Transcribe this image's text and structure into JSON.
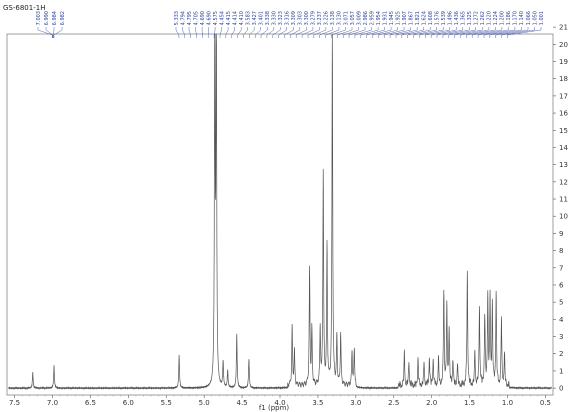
{
  "chart_data": {
    "type": "line",
    "title": "GS-6801-1H",
    "xlabel": "f1 (ppm)",
    "ylabel": "",
    "xlim": [
      7.6,
      0.4
    ],
    "ylim": [
      -0.4,
      20.6
    ],
    "x_reversed": true,
    "x_ticks": [
      "7.5",
      "7.0",
      "6.5",
      "6.0",
      "5.5",
      "5.0",
      "4.5",
      "4.0",
      "3.5",
      "3.0",
      "2.5",
      "2.0",
      "1.5",
      "1.0",
      "0.5"
    ],
    "y_ticks": [
      "0",
      "1",
      "2",
      "3",
      "4",
      "5",
      "6",
      "7",
      "8",
      "9",
      "10",
      "11",
      "12",
      "13",
      "14",
      "15",
      "16",
      "17",
      "18",
      "19",
      "20",
      "21"
    ],
    "line_color": "#555555",
    "label_color": "#2a3f9a",
    "peaks": [
      {
        "x": 7.26,
        "y": 0.9
      },
      {
        "x": 6.98,
        "y": 1.3
      },
      {
        "x": 5.33,
        "y": 1.9
      },
      {
        "x": 4.86,
        "y": 20.6
      },
      {
        "x": 4.84,
        "y": 20.6
      },
      {
        "x": 4.75,
        "y": 1.5
      },
      {
        "x": 4.69,
        "y": 1.0
      },
      {
        "x": 4.57,
        "y": 3.1
      },
      {
        "x": 4.41,
        "y": 1.7
      },
      {
        "x": 3.84,
        "y": 3.4
      },
      {
        "x": 3.81,
        "y": 2.0
      },
      {
        "x": 3.61,
        "y": 6.7
      },
      {
        "x": 3.58,
        "y": 3.2
      },
      {
        "x": 3.47,
        "y": 3.3
      },
      {
        "x": 3.43,
        "y": 12.4
      },
      {
        "x": 3.38,
        "y": 8.0
      },
      {
        "x": 3.31,
        "y": 20.6
      },
      {
        "x": 3.25,
        "y": 2.8
      },
      {
        "x": 3.2,
        "y": 3.0
      },
      {
        "x": 3.05,
        "y": 2.0
      },
      {
        "x": 3.02,
        "y": 2.1
      },
      {
        "x": 2.36,
        "y": 1.9
      },
      {
        "x": 2.3,
        "y": 1.4
      },
      {
        "x": 2.18,
        "y": 1.6
      },
      {
        "x": 2.1,
        "y": 1.4
      },
      {
        "x": 2.03,
        "y": 1.7
      },
      {
        "x": 1.98,
        "y": 1.6
      },
      {
        "x": 1.91,
        "y": 1.5
      },
      {
        "x": 1.84,
        "y": 5.4
      },
      {
        "x": 1.8,
        "y": 4.5
      },
      {
        "x": 1.77,
        "y": 3.3
      },
      {
        "x": 1.72,
        "y": 1.5
      },
      {
        "x": 1.66,
        "y": 1.2
      },
      {
        "x": 1.53,
        "y": 6.6
      },
      {
        "x": 1.43,
        "y": 2.0
      },
      {
        "x": 1.37,
        "y": 4.6
      },
      {
        "x": 1.3,
        "y": 4.1
      },
      {
        "x": 1.26,
        "y": 5.3
      },
      {
        "x": 1.23,
        "y": 5.1
      },
      {
        "x": 1.2,
        "y": 4.6
      },
      {
        "x": 1.15,
        "y": 5.4
      },
      {
        "x": 1.08,
        "y": 3.9
      },
      {
        "x": 1.04,
        "y": 1.8
      }
    ],
    "peak_labels_group1": [
      "7.003",
      "6.990",
      "6.984",
      "6.982"
    ],
    "peak_labels_group2": [
      "5.333",
      "4.794",
      "4.795",
      "4.705",
      "4.690",
      "4.690",
      "4.575",
      "4.454",
      "4.415",
      "4.414",
      "4.410",
      "3.583",
      "3.427",
      "3.401",
      "3.338",
      "3.330",
      "3.323",
      "3.316",
      "3.309",
      "3.303",
      "3.300",
      "3.279",
      "3.237",
      "3.226",
      "3.138",
      "3.130",
      "3.071",
      "3.057",
      "3.009",
      "2.986",
      "2.959",
      "1.954",
      "1.931",
      "1.945",
      "1.925",
      "1.907",
      "1.867",
      "1.821",
      "1.624",
      "1.608",
      "1.576",
      "1.539",
      "1.496",
      "1.436",
      "1.365",
      "1.325",
      "1.272",
      "1.262",
      "1.220",
      "1.224",
      "1.200",
      "1.186",
      "1.170",
      "1.140",
      "1.066",
      "1.050",
      "1.001"
    ]
  }
}
